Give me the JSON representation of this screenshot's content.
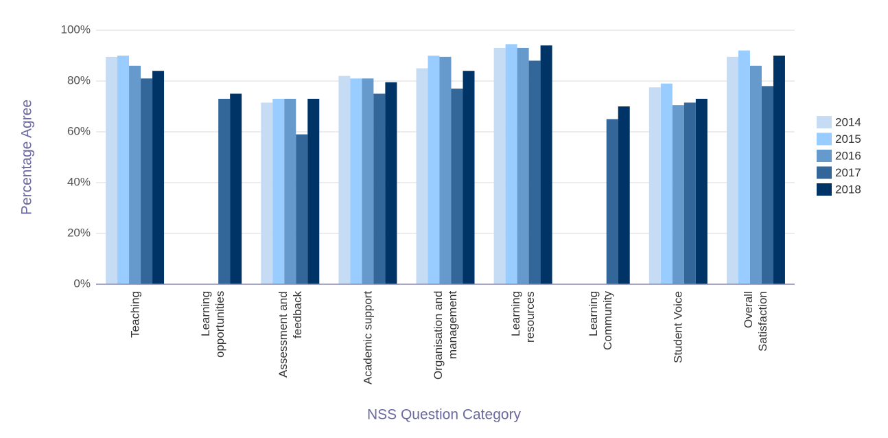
{
  "chart_data": {
    "type": "bar",
    "x_label": "NSS Question Category",
    "y_label": "Percentage Agree",
    "categories": [
      "Teaching",
      "Learning opportunities",
      "Assessment and feedback",
      "Academic support",
      "Organisation and management",
      "Learning resources",
      "Learning Community",
      "Student Voice",
      "Overall Satisfaction"
    ],
    "series": [
      {
        "name": "2014",
        "color": "#c6dcf5",
        "values": [
          89.5,
          null,
          71.5,
          82,
          85,
          93,
          null,
          77.5,
          89.5
        ]
      },
      {
        "name": "2015",
        "color": "#99ccff",
        "values": [
          90,
          null,
          73,
          81,
          90,
          94.5,
          null,
          79,
          92
        ]
      },
      {
        "name": "2016",
        "color": "#6699cc",
        "values": [
          86,
          null,
          73,
          81,
          89.5,
          93,
          null,
          70.5,
          86
        ]
      },
      {
        "name": "2017",
        "color": "#336699",
        "values": [
          81,
          73,
          59,
          75,
          77,
          88,
          65,
          71.5,
          78
        ]
      },
      {
        "name": "2018",
        "color": "#003366",
        "values": [
          84,
          75,
          73,
          79.5,
          84,
          94,
          70,
          73,
          90
        ]
      }
    ],
    "ylim": [
      0,
      100
    ],
    "yticks": [
      {
        "value": 0,
        "label": "0%"
      },
      {
        "value": 20,
        "label": "20%"
      },
      {
        "value": 40,
        "label": "40%"
      },
      {
        "value": 60,
        "label": "60%"
      },
      {
        "value": 80,
        "label": "80%"
      },
      {
        "value": 100,
        "label": "100%"
      }
    ],
    "grid": true,
    "legend": "right"
  }
}
